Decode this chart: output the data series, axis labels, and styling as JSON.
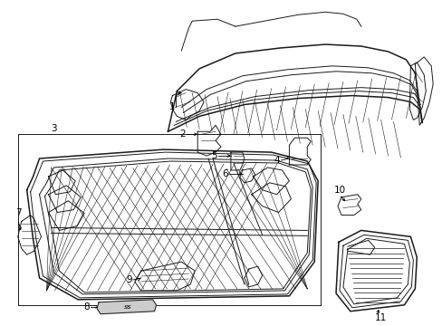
{
  "background_color": "#ffffff",
  "line_color": "#1a1a1a",
  "label_color": "#000000",
  "lw": 0.7,
  "lw_thick": 1.1,
  "lw_thin": 0.4
}
